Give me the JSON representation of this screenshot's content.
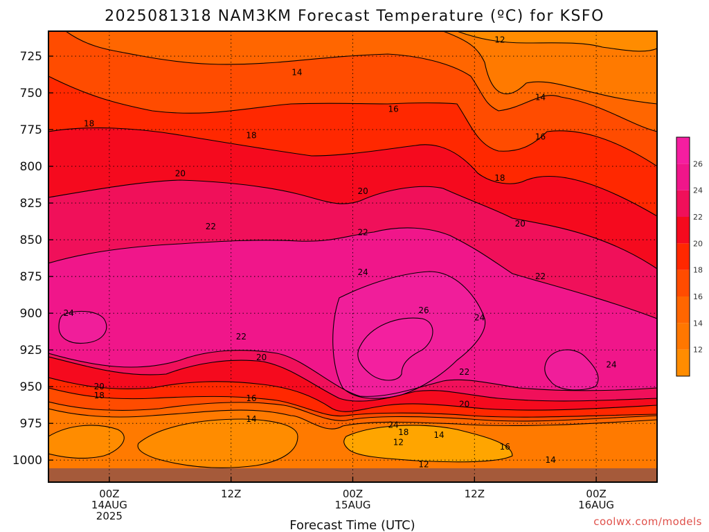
{
  "chart_data": {
    "type": "heatmap",
    "title": "2025081318 NAM3KM Forecast Temperature (ºC) for KSFO",
    "xlabel": "Forecast Time (UTC)",
    "ylabel": "",
    "y_ticks": [
      725,
      750,
      775,
      800,
      825,
      850,
      875,
      900,
      925,
      950,
      975,
      1000
    ],
    "ylim_hPa": [
      1015,
      708
    ],
    "x_ticks": [
      {
        "hours": 6,
        "lines": [
          "00Z",
          "14AUG",
          "2025"
        ]
      },
      {
        "hours": 18,
        "lines": [
          "12Z"
        ]
      },
      {
        "hours": 30,
        "lines": [
          "00Z",
          "15AUG"
        ]
      },
      {
        "hours": 42,
        "lines": [
          "12Z"
        ]
      },
      {
        "hours": 54,
        "lines": [
          "00Z",
          "16AUG"
        ]
      }
    ],
    "xlim_hours": [
      0,
      60
    ],
    "grid": true,
    "colorbar": {
      "levels": [
        10,
        12,
        14,
        16,
        18,
        20,
        22,
        24,
        26,
        28
      ],
      "labels": [
        "12",
        "14",
        "16",
        "18",
        "20",
        "22",
        "24",
        "26"
      ],
      "colors": [
        "#ff8c00",
        "#ff7700",
        "#ff6600",
        "#ff4c00",
        "#ff2800",
        "#f50a1e",
        "#f0105a",
        "#f0168a",
        "#f51ea0"
      ]
    },
    "ground_color": "#a55a3a",
    "contour_labels": [
      {
        "text": "12",
        "hours": 44.5,
        "hPa": 714
      },
      {
        "text": "14",
        "hours": 24.5,
        "hPa": 736
      },
      {
        "text": "14",
        "hours": 48.5,
        "hPa": 753
      },
      {
        "text": "16",
        "hours": 34,
        "hPa": 761
      },
      {
        "text": "16",
        "hours": 48.5,
        "hPa": 780
      },
      {
        "text": "18",
        "hours": 4,
        "hPa": 771
      },
      {
        "text": "18",
        "hours": 20,
        "hPa": 779
      },
      {
        "text": "18",
        "hours": 44.5,
        "hPa": 808
      },
      {
        "text": "20",
        "hours": 13,
        "hPa": 805
      },
      {
        "text": "20",
        "hours": 31,
        "hPa": 817
      },
      {
        "text": "20",
        "hours": 46.5,
        "hPa": 839
      },
      {
        "text": "22",
        "hours": 16,
        "hPa": 841
      },
      {
        "text": "22",
        "hours": 31,
        "hPa": 845
      },
      {
        "text": "22",
        "hours": 48.5,
        "hPa": 875
      },
      {
        "text": "24",
        "hours": 2,
        "hPa": 900
      },
      {
        "text": "24",
        "hours": 31,
        "hPa": 872
      },
      {
        "text": "24",
        "hours": 42.5,
        "hPa": 903
      },
      {
        "text": "24",
        "hours": 55.5,
        "hPa": 935
      },
      {
        "text": "24",
        "hours": 34,
        "hPa": 976
      },
      {
        "text": "26",
        "hours": 37,
        "hPa": 898
      },
      {
        "text": "22",
        "hours": 19,
        "hPa": 916
      },
      {
        "text": "20",
        "hours": 21,
        "hPa": 930
      },
      {
        "text": "22",
        "hours": 41,
        "hPa": 940
      },
      {
        "text": "20",
        "hours": 41,
        "hPa": 962
      },
      {
        "text": "20",
        "hours": 5,
        "hPa": 950
      },
      {
        "text": "18",
        "hours": 5,
        "hPa": 956
      },
      {
        "text": "16",
        "hours": 20,
        "hPa": 958
      },
      {
        "text": "14",
        "hours": 20,
        "hPa": 972
      },
      {
        "text": "18",
        "hours": 35,
        "hPa": 981
      },
      {
        "text": "14",
        "hours": 38.5,
        "hPa": 983
      },
      {
        "text": "12",
        "hours": 34.5,
        "hPa": 988
      },
      {
        "text": "16",
        "hours": 45,
        "hPa": 991
      },
      {
        "text": "14",
        "hours": 49.5,
        "hPa": 1000
      },
      {
        "text": "12",
        "hours": 37,
        "hPa": 1003
      }
    ]
  },
  "credit": "coolwx.com/models"
}
